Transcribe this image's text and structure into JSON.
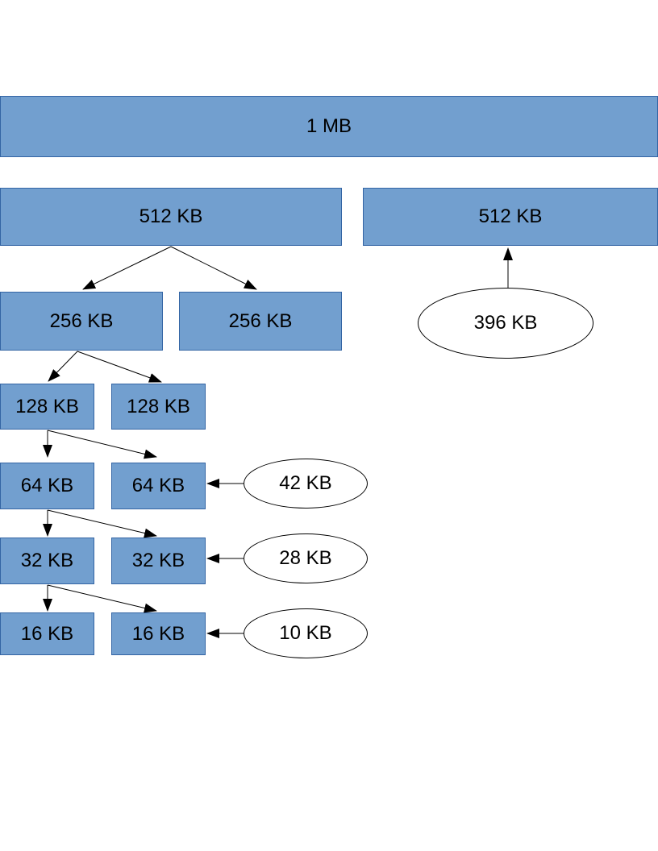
{
  "colors": {
    "block_fill": "#729fcf",
    "block_border": "#3465a4",
    "request_fill": "#ffffff",
    "line": "#000000"
  },
  "blocks": {
    "root": "1 MB",
    "l1_left": "512 KB",
    "l1_right": "512 KB",
    "l2_left": "256 KB",
    "l2_right": "256 KB",
    "l3_left": "128 KB",
    "l3_right": "128 KB",
    "l4_left": "64 KB",
    "l4_right": "64 KB",
    "l5_left": "32 KB",
    "l5_right": "32 KB",
    "l6_left": "16 KB",
    "l6_right": "16 KB"
  },
  "requests": {
    "r396": "396 KB",
    "r42": "42 KB",
    "r28": "28 KB",
    "r10": "10 KB"
  }
}
